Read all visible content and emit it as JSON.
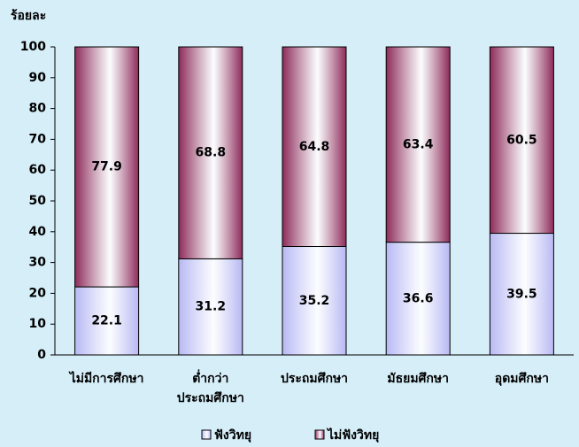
{
  "chart_data": {
    "type": "stacked_bar",
    "y_label": "ร้อยละ",
    "categories": [
      "ไม่มีการศึกษา",
      "ต่ำกว่า\nประถมศึกษา",
      "ประถมศึกษา",
      "มัธยมศึกษา",
      "อุดมศึกษา"
    ],
    "series": [
      {
        "name": "ฟังวิทยุ",
        "color": "#b8b8f4",
        "values": [
          22.1,
          31.2,
          35.2,
          36.6,
          39.5
        ]
      },
      {
        "name": "ไม่ฟังวิทยุ",
        "color": "#8e2a5a",
        "values": [
          77.9,
          68.8,
          64.8,
          63.4,
          60.5
        ]
      }
    ],
    "ylim": [
      0,
      100
    ],
    "yticks": [
      0,
      10,
      20,
      30,
      40,
      50,
      60,
      70,
      80,
      90,
      100
    ],
    "grid": false,
    "legend": "bottom"
  }
}
